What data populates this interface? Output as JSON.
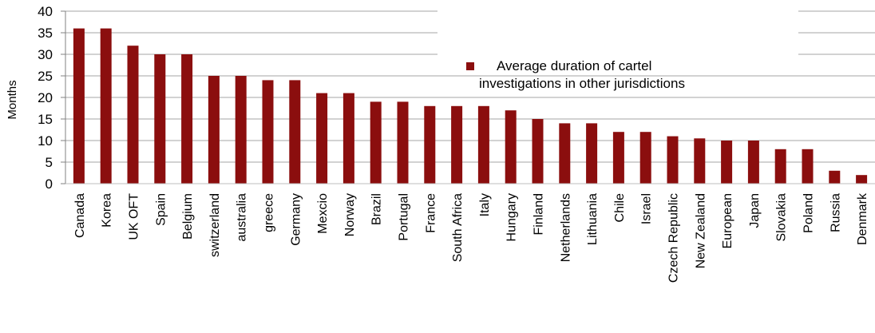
{
  "chart_data": {
    "type": "bar",
    "title": "",
    "xlabel": "",
    "ylabel": "Months",
    "ylim": [
      0,
      40
    ],
    "yticks": [
      0,
      5,
      10,
      15,
      20,
      25,
      30,
      35,
      40
    ],
    "grid": true,
    "legend_position": "top-right",
    "legend_lines": [
      "Average duration of cartel",
      "investigations in other jurisdictions"
    ],
    "categories": [
      "Canada",
      "Korea",
      "UK OFT",
      "Spain",
      "Belgium",
      "switzerland",
      "australia",
      "greece",
      "Germany",
      "Mexcio",
      "Norway",
      "Brazil",
      "Portugal",
      "France",
      "South Africa",
      "Italy",
      "Hungary",
      "Finland",
      "Netherlands",
      "Lithuania",
      "Chile",
      "Israel",
      "Czech Republic",
      "New Zealand",
      "European",
      "Japan",
      "Slovakia",
      "Poland",
      "Russia",
      "Denmark"
    ],
    "series": [
      {
        "name": "Average duration of cartel investigations in other jurisdictions",
        "color": "#8b0e0e",
        "values": [
          36,
          36,
          32,
          30,
          30,
          25,
          25,
          24,
          24,
          21,
          21,
          19,
          19,
          18,
          18,
          18,
          17,
          15,
          14,
          14,
          12,
          12,
          11,
          10.5,
          10,
          10,
          8,
          8,
          3,
          2
        ]
      }
    ]
  }
}
